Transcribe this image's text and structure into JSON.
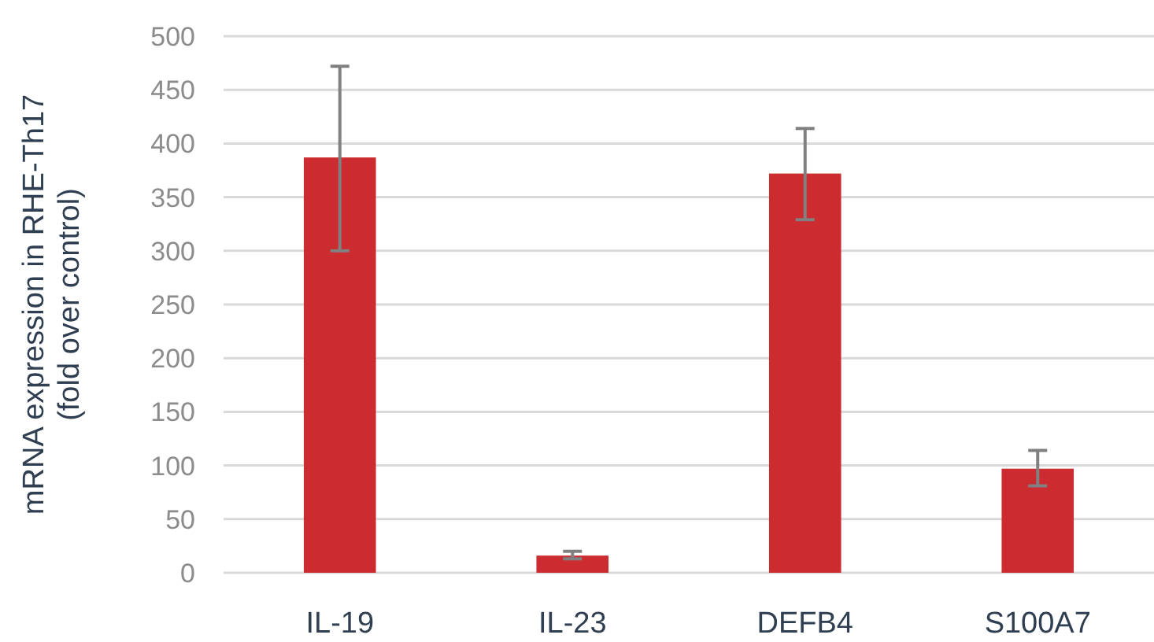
{
  "chart_data": {
    "type": "bar",
    "ylabel": "mRNA expression in RHE-Th17\n(fold over control)",
    "categories": [
      "IL-19",
      "IL-23",
      "DEFB4",
      "S100A7"
    ],
    "values": [
      387,
      16,
      372,
      97
    ],
    "color": "#cc2b30",
    "errors": [
      [
        300,
        472
      ],
      [
        13,
        20
      ],
      [
        329,
        414
      ],
      [
        81,
        114
      ]
    ],
    "ylim": [
      0,
      500
    ],
    "yticks": [
      0,
      50,
      100,
      150,
      200,
      250,
      300,
      350,
      400,
      450,
      500
    ],
    "grid": "y"
  }
}
